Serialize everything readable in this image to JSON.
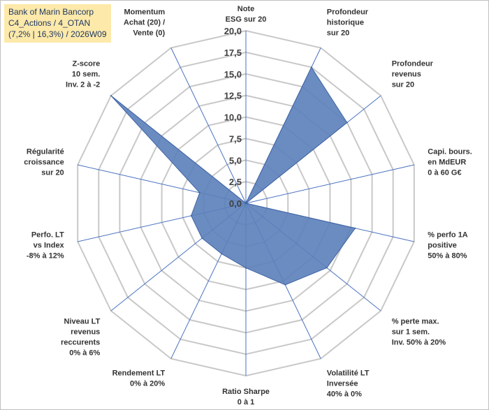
{
  "header": {
    "line1": "Bank of Marin Bancorp",
    "line2": "C4_Actions / 4_OTAN",
    "line3": "(7,2% | 16,3%) / 2026W09"
  },
  "colors": {
    "fill": "#5b7fba",
    "stroke": "#3f63a3",
    "grid": "#c8c8c8",
    "spoke": "#4a72c0",
    "info_bg": "#fde9a9"
  },
  "chart_data": {
    "type": "radar",
    "rmax": 20,
    "ticks": [
      "0,0",
      "2,5",
      "5,0",
      "7,5",
      "10,0",
      "12,5",
      "15,0",
      "17,5",
      "20,0"
    ],
    "tick_values": [
      0,
      2.5,
      5,
      7.5,
      10,
      12.5,
      15,
      17.5,
      20
    ],
    "axes": [
      {
        "label": [
          "Note",
          "ESG sur 20"
        ],
        "value": 0
      },
      {
        "label": [
          "Profondeur",
          "historique",
          "sur 20"
        ],
        "value": 17.5
      },
      {
        "label": [
          "Profondeur",
          "revenus",
          "sur 20"
        ],
        "value": 15.0
      },
      {
        "label": [
          "Capi. bours.",
          "en MdEUR",
          "0 à 60 G€"
        ],
        "value": 0
      },
      {
        "label": [
          "% perfo 1A",
          "positive",
          "50% à 80%"
        ],
        "value": 13.0
      },
      {
        "label": [
          "% perte max.",
          "sur 1 sem.",
          "Inv. 50% à 20%"
        ],
        "value": 12.0
      },
      {
        "label": [
          "Volatilité LT",
          "Inversée",
          "40% à 0%"
        ],
        "value": 10.5
      },
      {
        "label": [
          "Ratio Sharpe",
          "0 à 1"
        ],
        "value": 7.5
      },
      {
        "label": [
          "Rendement LT",
          "0% à 20%"
        ],
        "value": 6.5
      },
      {
        "label": [
          "Niveau LT",
          "revenus",
          "reccurents",
          "0% à 6%"
        ],
        "value": 6.5
      },
      {
        "label": [
          "Perfo. LT",
          "vs Index",
          "-8% à 12%"
        ],
        "value": 6.5
      },
      {
        "label": [
          "Régularité",
          "croissance",
          "sur 20"
        ],
        "value": 5.5
      },
      {
        "label": [
          "Z-score",
          "10 sem.",
          "Inv. 2 à -2"
        ],
        "value": 20.0
      },
      {
        "label": [
          "Momentum",
          "Achat (20) /",
          "Vente (0)"
        ],
        "value": 0
      }
    ]
  }
}
